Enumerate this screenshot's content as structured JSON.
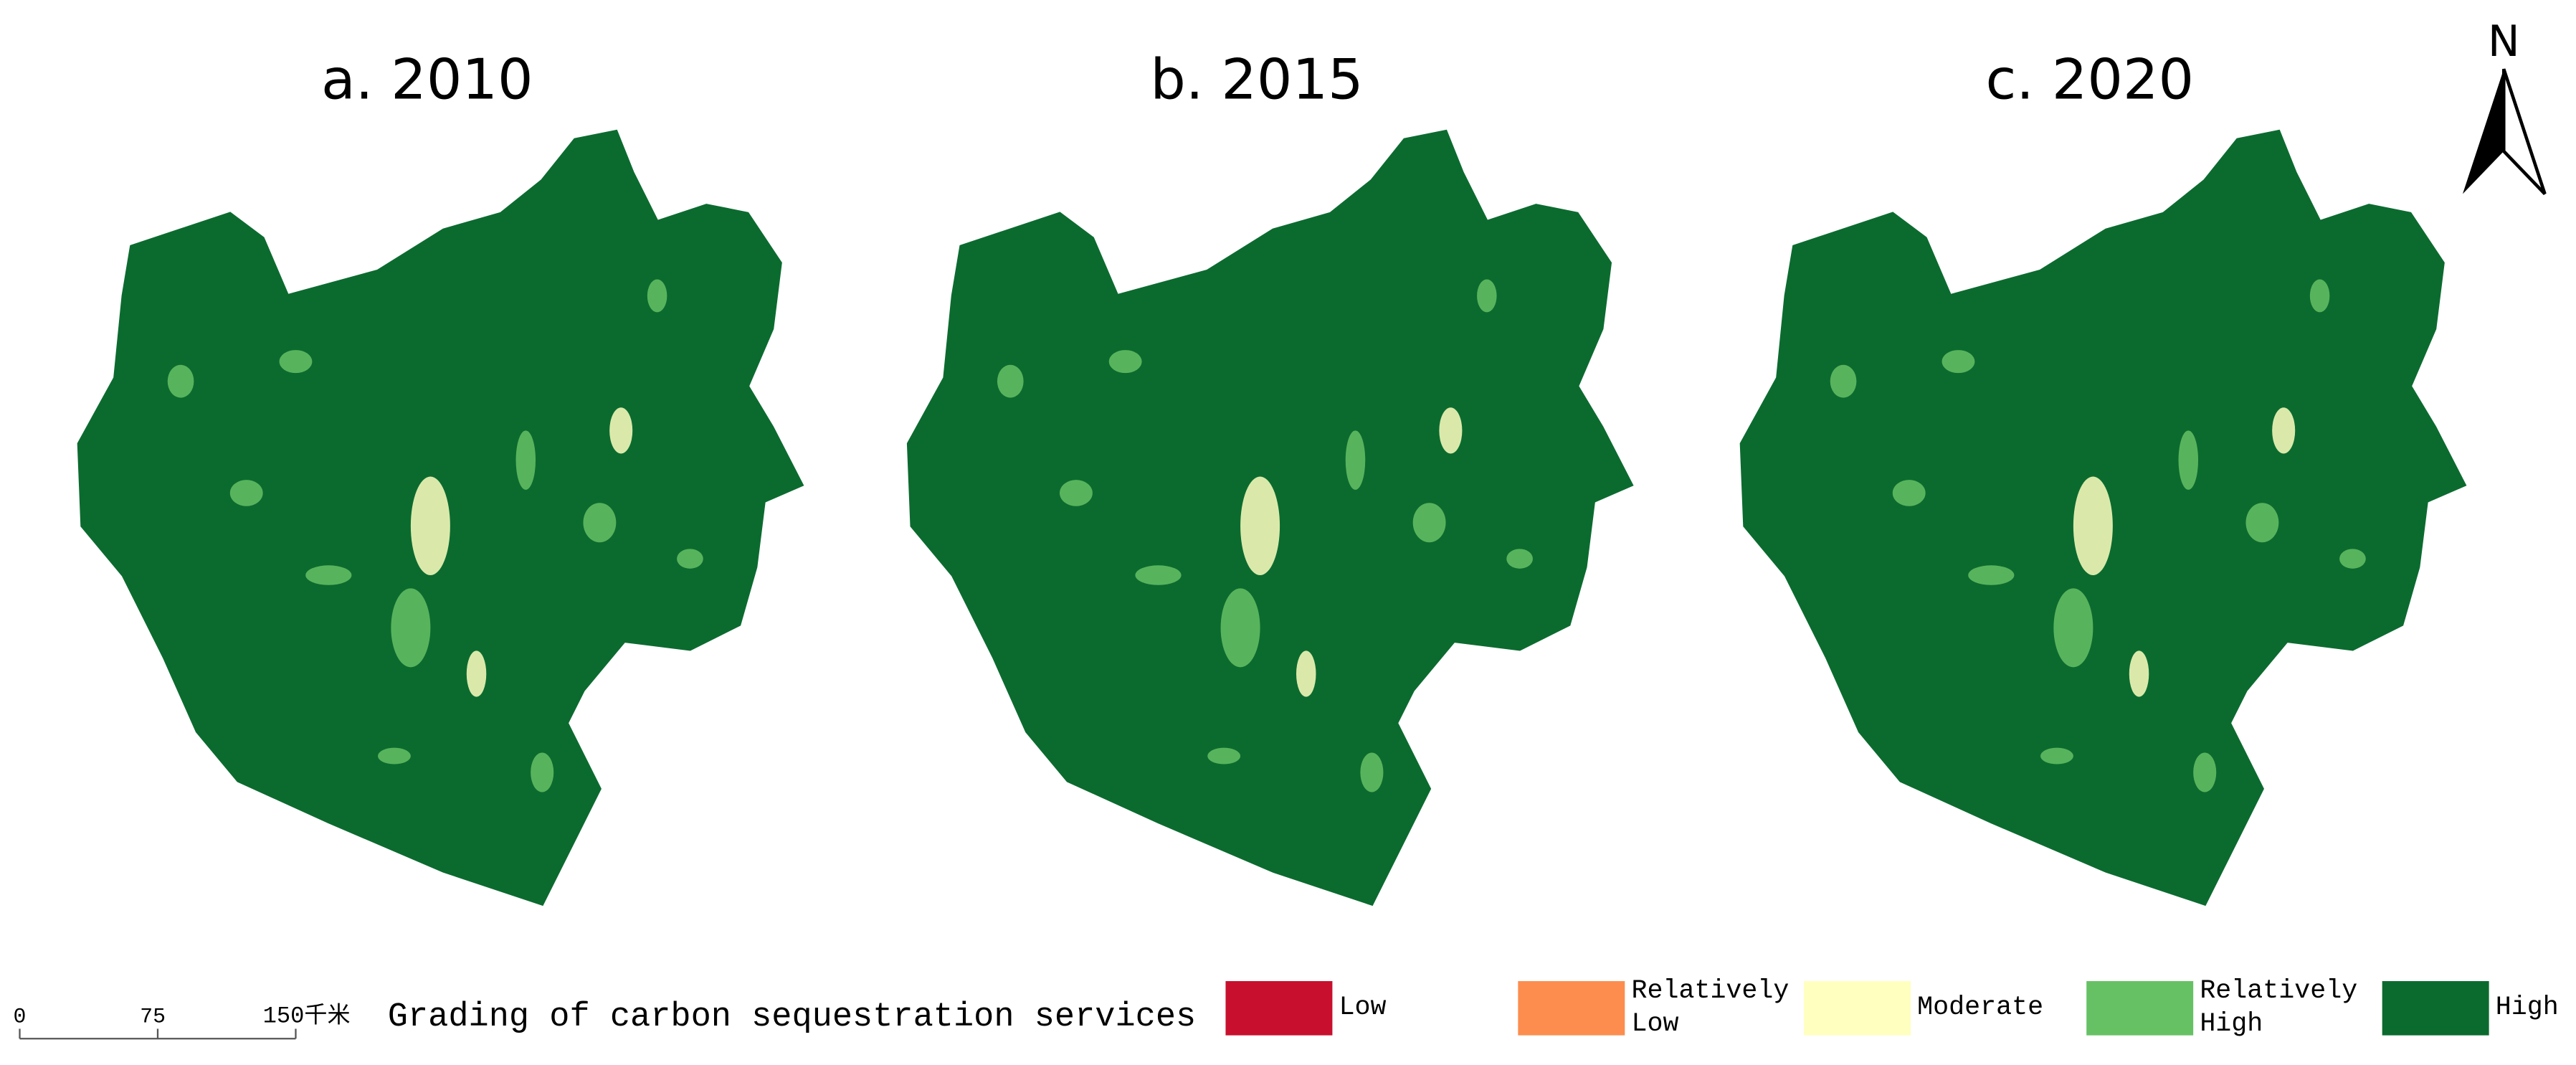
{
  "panels": [
    {
      "title": "a. 2010"
    },
    {
      "title": "b. 2015"
    },
    {
      "title": "c. 2020"
    }
  ],
  "north": "N",
  "scale_bar": {
    "labels": [
      "0",
      "75",
      "150千米"
    ]
  },
  "legend": {
    "title": "Grading of carbon sequestration services",
    "items": [
      {
        "lines": [
          "Low"
        ],
        "color": "#c8102e"
      },
      {
        "lines": [
          "Relatively",
          "Low"
        ],
        "color": "#fd8d4f"
      },
      {
        "lines": [
          "Moderate"
        ],
        "color": "#ffffbf"
      },
      {
        "lines": [
          "Relatively",
          "High"
        ],
        "color": "#66c164"
      },
      {
        "lines": [
          "High"
        ],
        "color": "#0b6b2f"
      }
    ]
  }
}
